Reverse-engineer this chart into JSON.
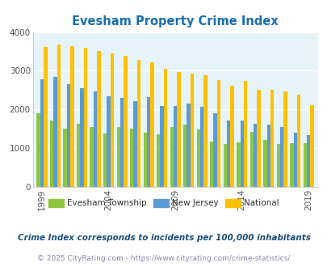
{
  "title": "Evesham Property Crime Index",
  "years": [
    1999,
    2000,
    2001,
    2002,
    2003,
    2004,
    2005,
    2006,
    2007,
    2008,
    2009,
    2010,
    2011,
    2012,
    2013,
    2014,
    2015,
    2016,
    2017,
    2018,
    2019
  ],
  "evesham": [
    1900,
    1720,
    1500,
    1620,
    1550,
    1380,
    1550,
    1500,
    1400,
    1350,
    1550,
    1610,
    1490,
    1180,
    1100,
    1150,
    1430,
    1220,
    1100,
    1120,
    1130
  ],
  "new_jersey": [
    2780,
    2850,
    2650,
    2550,
    2460,
    2350,
    2300,
    2220,
    2310,
    2090,
    2080,
    2150,
    2060,
    1900,
    1720,
    1720,
    1620,
    1600,
    1540,
    1390,
    1330
  ],
  "national": [
    3620,
    3670,
    3640,
    3590,
    3510,
    3440,
    3380,
    3290,
    3220,
    3050,
    2970,
    2930,
    2880,
    2750,
    2620,
    2730,
    2510,
    2500,
    2470,
    2380,
    2110
  ],
  "color_evesham": "#8cc63f",
  "color_nj": "#5b9bd5",
  "color_national": "#ffc000",
  "ylim": [
    0,
    4000
  ],
  "yticks": [
    0,
    1000,
    2000,
    3000,
    4000
  ],
  "xtick_labels": [
    "1999",
    "2004",
    "2009",
    "2014",
    "2019"
  ],
  "xtick_positions": [
    0,
    5,
    10,
    15,
    20
  ],
  "bg_color": "#e6f3f8",
  "footnote1": "Crime Index corresponds to incidents per 100,000 inhabitants",
  "footnote2": "© 2025 CityRating.com - https://www.cityrating.com/crime-statistics/",
  "legend_labels": [
    "Evesham Township",
    "New Jersey",
    "National"
  ],
  "bar_width": 0.27,
  "title_color": "#1a6faf",
  "footnote1_color": "#1a4f7a",
  "footnote2_color": "#8888aa"
}
